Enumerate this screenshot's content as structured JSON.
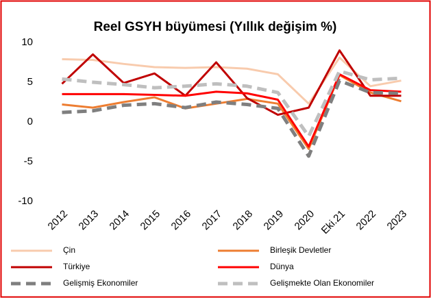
{
  "chart_data": {
    "type": "line",
    "title": "Reel GSYH büyümesi (Yıllık değişim %)",
    "categories": [
      "2012",
      "2013",
      "2014",
      "2015",
      "2016",
      "2017",
      "2018",
      "2019",
      "2020",
      "Eki.21",
      "2022",
      "2023"
    ],
    "ylim": [
      -10,
      10
    ],
    "yticks": [
      -10,
      -5,
      0,
      5,
      10
    ],
    "grid": false,
    "legend": "bottom",
    "series": [
      {
        "name": "Çin",
        "color": "#f8cbad",
        "dash": false,
        "values": [
          7.9,
          7.8,
          7.3,
          6.9,
          6.8,
          6.9,
          6.7,
          6.0,
          2.3,
          8.1,
          4.5,
          5.2
        ]
      },
      {
        "name": "Birleşik Devletler",
        "color": "#ed7d31",
        "dash": false,
        "values": [
          2.2,
          1.8,
          2.5,
          3.1,
          1.7,
          2.3,
          2.9,
          2.3,
          -3.4,
          5.9,
          3.7,
          2.6
        ]
      },
      {
        "name": "Türkiye",
        "color": "#c00000",
        "dash": false,
        "values": [
          4.8,
          8.5,
          4.9,
          6.1,
          3.3,
          7.5,
          3.0,
          0.9,
          1.8,
          9.0,
          3.3,
          3.3
        ]
      },
      {
        "name": "Dünya",
        "color": "#ff0000",
        "dash": false,
        "values": [
          3.5,
          3.5,
          3.5,
          3.4,
          3.3,
          3.8,
          3.6,
          2.8,
          -3.1,
          6.0,
          4.0,
          3.8
        ]
      },
      {
        "name": "Gelişmiş Ekonomiler",
        "color": "#7f7f7f",
        "dash": true,
        "values": [
          1.2,
          1.4,
          2.1,
          2.3,
          1.8,
          2.5,
          2.2,
          1.7,
          -4.3,
          5.2,
          3.7,
          3.6
        ]
      },
      {
        "name": "Gelişmekte Olan Ekonomiler",
        "color": "#bfbfbf",
        "dash": true,
        "values": [
          5.4,
          5.0,
          4.7,
          4.3,
          4.5,
          4.8,
          4.5,
          3.7,
          -1.8,
          6.4,
          5.3,
          5.5
        ]
      }
    ]
  }
}
